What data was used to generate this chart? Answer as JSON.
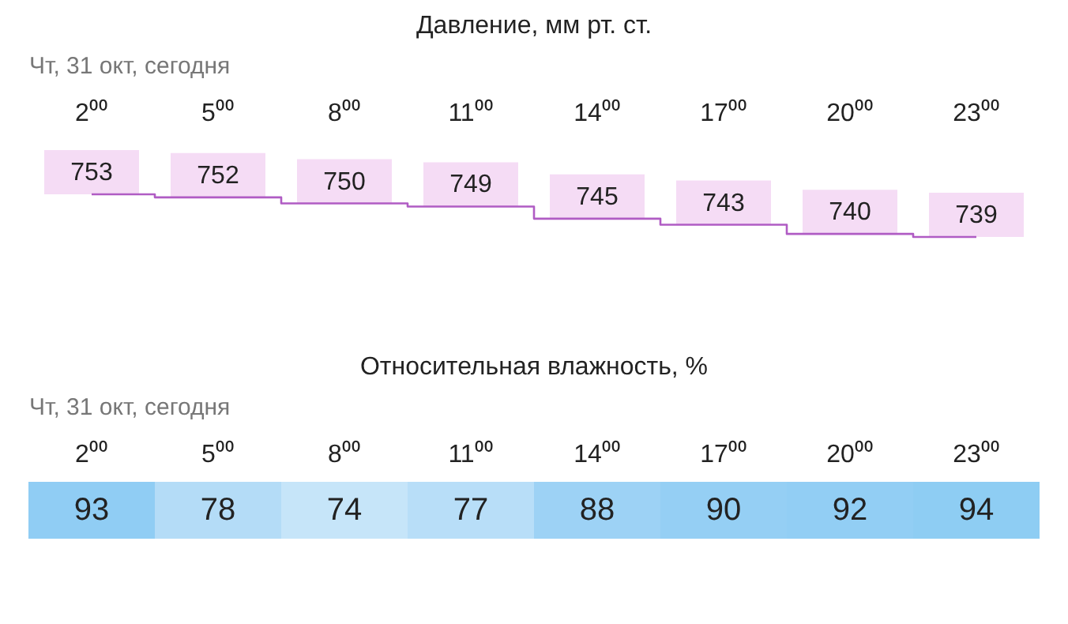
{
  "chart_data": [
    {
      "type": "step",
      "title": "Давление, мм рт. ст.",
      "subtitle": "Чт, 31 окт, сегодня",
      "categories": [
        "2⁰⁰",
        "5⁰⁰",
        "8⁰⁰",
        "11⁰⁰",
        "14⁰⁰",
        "17⁰⁰",
        "20⁰⁰",
        "23⁰⁰"
      ],
      "series": [
        {
          "color": "#b05cc4",
          "values": [
            753,
            752,
            750,
            749,
            745,
            743,
            740,
            739
          ]
        }
      ],
      "data_labels": true
    },
    {
      "type": "heatmap",
      "title": "Относительная влажность, %",
      "subtitle": "Чт, 31 окт, сегодня",
      "categories": [
        "2⁰⁰",
        "5⁰⁰",
        "8⁰⁰",
        "11⁰⁰",
        "14⁰⁰",
        "17⁰⁰",
        "20⁰⁰",
        "23⁰⁰"
      ],
      "y_categories": [
        null
      ],
      "cells": [
        [
          93,
          78,
          74,
          77,
          88,
          90,
          92,
          94
        ]
      ],
      "colors": [
        "#90cdf4",
        "#b4dcf7",
        "#c6e5f9",
        "#b8def8",
        "#9dd2f5",
        "#95cff4",
        "#92cef4",
        "#8ecdf3"
      ],
      "data_labels": true
    }
  ]
}
